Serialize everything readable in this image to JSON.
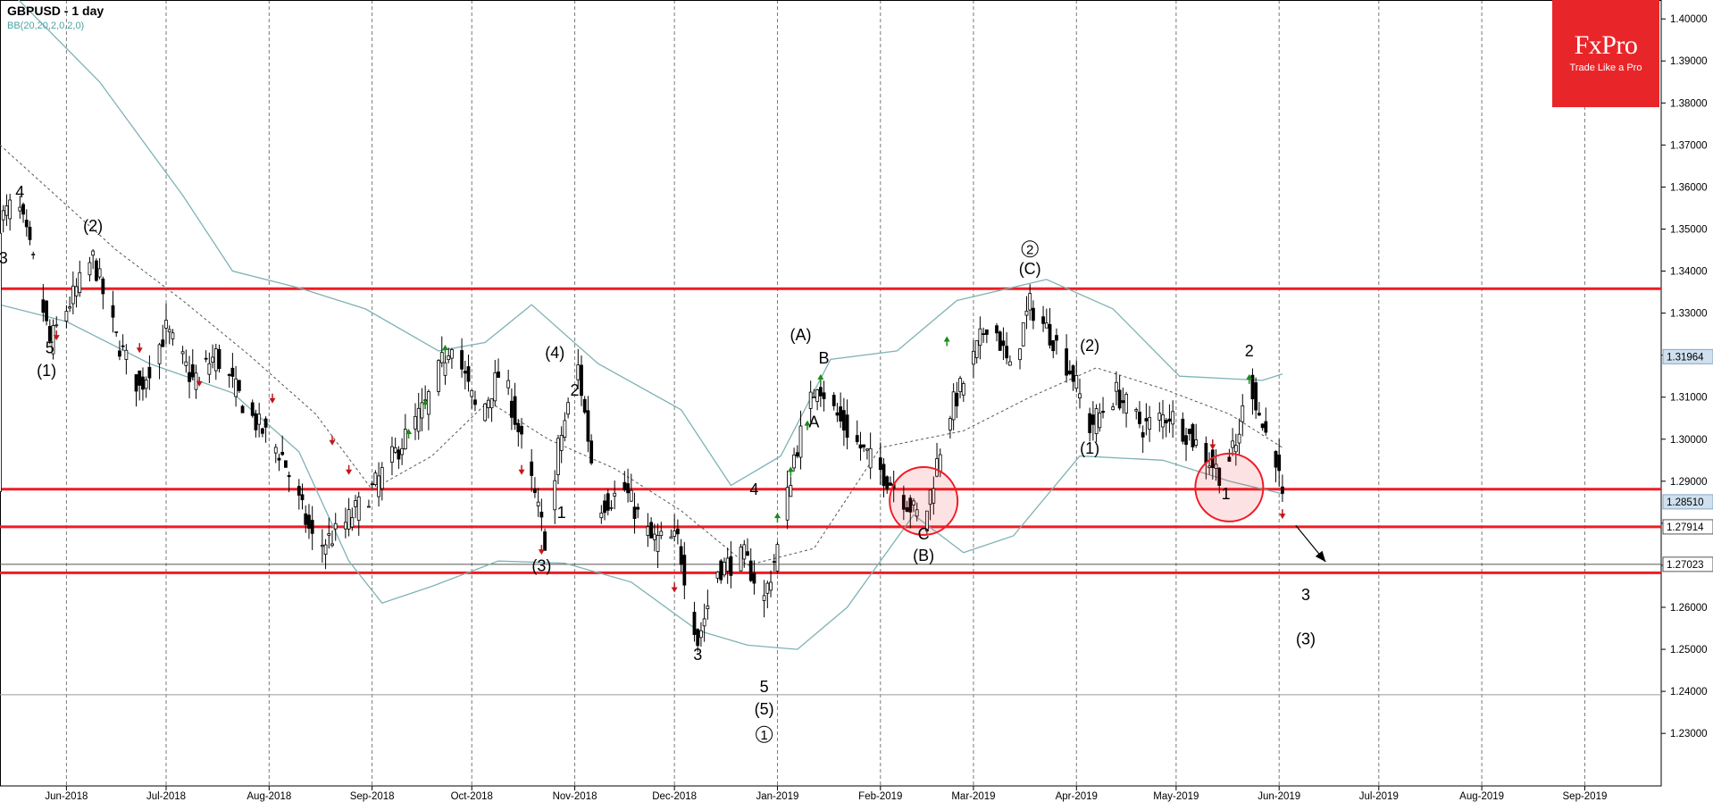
{
  "header": {
    "symbol_title": "GBPUSD - 1 day",
    "indicator": "BB(20,20,2,0,2,0)"
  },
  "logo": {
    "name": "FxPro",
    "tagline": "Trade Like a Pro",
    "color": "#e8262a"
  },
  "colors": {
    "bull": "#1b8a1b",
    "bear": "#c0171b",
    "level": "#ee1c25",
    "band": "#7fb2b5",
    "grid": "#7a7a7a"
  },
  "chart_data": {
    "type": "candlestick",
    "title": "GBPUSD - 1 day",
    "y_axis": {
      "ticks": [
        "1.40000",
        "1.39000",
        "1.38000",
        "1.37000",
        "1.36000",
        "1.35000",
        "1.34000",
        "1.33000",
        "1.32000",
        "1.31000",
        "1.30000",
        "1.29000",
        "1.28000",
        "1.27000",
        "1.26000",
        "1.25000",
        "1.24000",
        "1.23000"
      ],
      "range": [
        1.2175,
        1.4045
      ]
    },
    "x_axis": {
      "labels": [
        "Jun-2018",
        "Jul-2018",
        "Aug-2018",
        "Sep-2018",
        "Oct-2018",
        "Nov-2018",
        "Dec-2018",
        "Jan-2019",
        "Feb-2019",
        "Mar-2019",
        "Apr-2019",
        "May-2019",
        "Jun-2019",
        "Jul-2019",
        "Aug-2019",
        "Sep-2019"
      ],
      "range_days": [
        -20,
        480
      ]
    },
    "price_tags": [
      {
        "label": "1.31964",
        "value": 1.31964,
        "style": "current"
      },
      {
        "label": "1.28510",
        "value": 1.2851,
        "style": "current"
      },
      {
        "label": "1.27914",
        "value": 1.27914,
        "style": "plain"
      },
      {
        "label": "1.27023",
        "value": 1.27023,
        "style": "plain"
      }
    ],
    "horizontal_levels": [
      {
        "value": 1.3358,
        "color": "#ee1c25"
      },
      {
        "value": 1.2881,
        "color": "#ee1c25"
      },
      {
        "value": 1.27914,
        "color": "#ee1c25"
      },
      {
        "value": 1.2682,
        "color": "#ee1c25"
      },
      {
        "value": 1.27023,
        "color": "#555555"
      },
      {
        "value": 1.2392,
        "color": "#9a9a9a"
      }
    ],
    "wave_labels": [
      {
        "text": "4",
        "day": -14,
        "price": 1.3575
      },
      {
        "text": "3",
        "day": -19,
        "price": 1.3418
      },
      {
        "text": "(2)",
        "day": 8,
        "price": 1.3495
      },
      {
        "text": "5",
        "day": -5,
        "price": 1.3205
      },
      {
        "text": "(1)",
        "day": -6,
        "price": 1.315
      },
      {
        "text": "(4)",
        "day": 147,
        "price": 1.3193
      },
      {
        "text": "2",
        "day": 153,
        "price": 1.3104
      },
      {
        "text": "1",
        "day": 149,
        "price": 1.2813
      },
      {
        "text": "(3)",
        "day": 143,
        "price": 1.2686
      },
      {
        "text": "3",
        "day": 190,
        "price": 1.2475
      },
      {
        "text": "4",
        "day": 207,
        "price": 1.2868
      },
      {
        "text": "5",
        "day": 210,
        "price": 1.2398
      },
      {
        "text": "(5)",
        "day": 210,
        "price": 1.2345
      },
      {
        "text": "1",
        "day": 210,
        "price": 1.2285,
        "circled": true
      },
      {
        "text": "(A)",
        "day": 221,
        "price": 1.3235
      },
      {
        "text": "B",
        "day": 228,
        "price": 1.318
      },
      {
        "text": "A",
        "day": 225,
        "price": 1.3028
      },
      {
        "text": "C",
        "day": 258,
        "price": 1.2762
      },
      {
        "text": "(B)",
        "day": 258,
        "price": 1.271
      },
      {
        "text": "2",
        "day": 290,
        "price": 1.344,
        "circled": true
      },
      {
        "text": "(C)",
        "day": 290,
        "price": 1.3393
      },
      {
        "text": "(2)",
        "day": 308,
        "price": 1.321
      },
      {
        "text": "(1)",
        "day": 308,
        "price": 1.2965
      },
      {
        "text": "2",
        "day": 356,
        "price": 1.3197
      },
      {
        "text": "1",
        "day": 349,
        "price": 1.2857
      },
      {
        "text": "3",
        "day": 373,
        "price": 1.2617
      },
      {
        "text": "(3)",
        "day": 373,
        "price": 1.2512
      }
    ],
    "highlight_circles": [
      {
        "day": 258,
        "price": 1.2853,
        "color": "#ee1c25"
      },
      {
        "day": 350,
        "price": 1.2885,
        "color": "#ee1c25"
      }
    ],
    "projection_arrow": {
      "from": {
        "day": 370,
        "price": 1.2795
      },
      "to": {
        "day": 379,
        "price": 1.2708
      }
    },
    "bb_upper": [
      {
        "day": -20,
        "price": 1.409
      },
      {
        "day": 10,
        "price": 1.385
      },
      {
        "day": 35,
        "price": 1.358
      },
      {
        "day": 50,
        "price": 1.34
      },
      {
        "day": 70,
        "price": 1.336
      },
      {
        "day": 90,
        "price": 1.331
      },
      {
        "day": 112,
        "price": 1.321
      },
      {
        "day": 126,
        "price": 1.323
      },
      {
        "day": 140,
        "price": 1.332
      },
      {
        "day": 160,
        "price": 1.318
      },
      {
        "day": 185,
        "price": 1.307
      },
      {
        "day": 200,
        "price": 1.289
      },
      {
        "day": 215,
        "price": 1.296
      },
      {
        "day": 230,
        "price": 1.319
      },
      {
        "day": 250,
        "price": 1.321
      },
      {
        "day": 268,
        "price": 1.333
      },
      {
        "day": 295,
        "price": 1.338
      },
      {
        "day": 315,
        "price": 1.331
      },
      {
        "day": 335,
        "price": 1.315
      },
      {
        "day": 360,
        "price": 1.314
      },
      {
        "day": 366,
        "price": 1.3155
      }
    ],
    "bb_lower": [
      {
        "day": -20,
        "price": 1.332
      },
      {
        "day": 0,
        "price": 1.328
      },
      {
        "day": 25,
        "price": 1.318
      },
      {
        "day": 50,
        "price": 1.311
      },
      {
        "day": 70,
        "price": 1.297
      },
      {
        "day": 85,
        "price": 1.271
      },
      {
        "day": 95,
        "price": 1.261
      },
      {
        "day": 110,
        "price": 1.265
      },
      {
        "day": 130,
        "price": 1.271
      },
      {
        "day": 150,
        "price": 1.2705
      },
      {
        "day": 170,
        "price": 1.266
      },
      {
        "day": 190,
        "price": 1.2545
      },
      {
        "day": 205,
        "price": 1.251
      },
      {
        "day": 220,
        "price": 1.25
      },
      {
        "day": 235,
        "price": 1.26
      },
      {
        "day": 255,
        "price": 1.282
      },
      {
        "day": 270,
        "price": 1.273
      },
      {
        "day": 285,
        "price": 1.277
      },
      {
        "day": 305,
        "price": 1.296
      },
      {
        "day": 330,
        "price": 1.295
      },
      {
        "day": 350,
        "price": 1.29
      },
      {
        "day": 366,
        "price": 1.287
      }
    ],
    "bb_middle": [
      {
        "day": -20,
        "price": 1.37
      },
      {
        "day": 15,
        "price": 1.345
      },
      {
        "day": 35,
        "price": 1.333
      },
      {
        "day": 55,
        "price": 1.32
      },
      {
        "day": 75,
        "price": 1.306
      },
      {
        "day": 92,
        "price": 1.288
      },
      {
        "day": 110,
        "price": 1.296
      },
      {
        "day": 127,
        "price": 1.309
      },
      {
        "day": 145,
        "price": 1.3
      },
      {
        "day": 165,
        "price": 1.293
      },
      {
        "day": 185,
        "price": 1.283
      },
      {
        "day": 205,
        "price": 1.27
      },
      {
        "day": 225,
        "price": 1.274
      },
      {
        "day": 245,
        "price": 1.298
      },
      {
        "day": 270,
        "price": 1.302
      },
      {
        "day": 290,
        "price": 1.31
      },
      {
        "day": 310,
        "price": 1.317
      },
      {
        "day": 330,
        "price": 1.312
      },
      {
        "day": 350,
        "price": 1.306
      },
      {
        "day": 366,
        "price": 1.298
      }
    ],
    "price_path": [
      {
        "day": -20,
        "price": 1.352
      },
      {
        "day": -15,
        "price": 1.357
      },
      {
        "day": -10,
        "price": 1.342
      },
      {
        "day": -5,
        "price": 1.323
      },
      {
        "day": 0,
        "price": 1.331
      },
      {
        "day": 8,
        "price": 1.343
      },
      {
        "day": 15,
        "price": 1.324
      },
      {
        "day": 22,
        "price": 1.312
      },
      {
        "day": 30,
        "price": 1.326
      },
      {
        "day": 38,
        "price": 1.314
      },
      {
        "day": 45,
        "price": 1.32
      },
      {
        "day": 55,
        "price": 1.306
      },
      {
        "day": 65,
        "price": 1.296
      },
      {
        "day": 75,
        "price": 1.274
      },
      {
        "day": 82,
        "price": 1.278
      },
      {
        "day": 92,
        "price": 1.288
      },
      {
        "day": 100,
        "price": 1.298
      },
      {
        "day": 108,
        "price": 1.308
      },
      {
        "day": 116,
        "price": 1.324
      },
      {
        "day": 124,
        "price": 1.305
      },
      {
        "day": 131,
        "price": 1.317
      },
      {
        "day": 138,
        "price": 1.296
      },
      {
        "day": 145,
        "price": 1.273
      },
      {
        "day": 148,
        "price": 1.298
      },
      {
        "day": 154,
        "price": 1.317
      },
      {
        "day": 160,
        "price": 1.284
      },
      {
        "day": 168,
        "price": 1.288
      },
      {
        "day": 176,
        "price": 1.276
      },
      {
        "day": 184,
        "price": 1.276
      },
      {
        "day": 190,
        "price": 1.252
      },
      {
        "day": 196,
        "price": 1.269
      },
      {
        "day": 204,
        "price": 1.272
      },
      {
        "day": 210,
        "price": 1.262
      },
      {
        "day": 215,
        "price": 1.277
      },
      {
        "day": 219,
        "price": 1.296
      },
      {
        "day": 226,
        "price": 1.314
      },
      {
        "day": 233,
        "price": 1.304
      },
      {
        "day": 240,
        "price": 1.297
      },
      {
        "day": 250,
        "price": 1.288
      },
      {
        "day": 258,
        "price": 1.28
      },
      {
        "day": 265,
        "price": 1.305
      },
      {
        "day": 272,
        "price": 1.317
      },
      {
        "day": 278,
        "price": 1.33
      },
      {
        "day": 284,
        "price": 1.316
      },
      {
        "day": 290,
        "price": 1.332
      },
      {
        "day": 297,
        "price": 1.324
      },
      {
        "day": 303,
        "price": 1.315
      },
      {
        "day": 308,
        "price": 1.303
      },
      {
        "day": 316,
        "price": 1.311
      },
      {
        "day": 324,
        "price": 1.303
      },
      {
        "day": 332,
        "price": 1.306
      },
      {
        "day": 340,
        "price": 1.299
      },
      {
        "day": 347,
        "price": 1.292
      },
      {
        "day": 352,
        "price": 1.298
      },
      {
        "day": 356,
        "price": 1.315
      },
      {
        "day": 360,
        "price": 1.303
      },
      {
        "day": 364,
        "price": 1.296
      },
      {
        "day": 366,
        "price": 1.285
      }
    ],
    "signal_arrows": [
      {
        "day": -3,
        "price": 1.325,
        "dir": "down"
      },
      {
        "day": 22,
        "price": 1.322,
        "dir": "down"
      },
      {
        "day": 40,
        "price": 1.314,
        "dir": "down"
      },
      {
        "day": 62,
        "price": 1.31,
        "dir": "down"
      },
      {
        "day": 80,
        "price": 1.3,
        "dir": "down"
      },
      {
        "day": 85,
        "price": 1.293,
        "dir": "down"
      },
      {
        "day": 103,
        "price": 1.301,
        "dir": "up"
      },
      {
        "day": 108,
        "price": 1.308,
        "dir": "up"
      },
      {
        "day": 114,
        "price": 1.321,
        "dir": "up"
      },
      {
        "day": 137,
        "price": 1.293,
        "dir": "down"
      },
      {
        "day": 143,
        "price": 1.274,
        "dir": "down"
      },
      {
        "day": 183,
        "price": 1.265,
        "dir": "down"
      },
      {
        "day": 214,
        "price": 1.281,
        "dir": "up"
      },
      {
        "day": 218,
        "price": 1.292,
        "dir": "up"
      },
      {
        "day": 223,
        "price": 1.303,
        "dir": "up"
      },
      {
        "day": 227,
        "price": 1.314,
        "dir": "up"
      },
      {
        "day": 265,
        "price": 1.323,
        "dir": "up"
      },
      {
        "day": 345,
        "price": 1.299,
        "dir": "down"
      },
      {
        "day": 356,
        "price": 1.314,
        "dir": "up"
      },
      {
        "day": 366,
        "price": 1.2825,
        "dir": "down"
      }
    ]
  }
}
